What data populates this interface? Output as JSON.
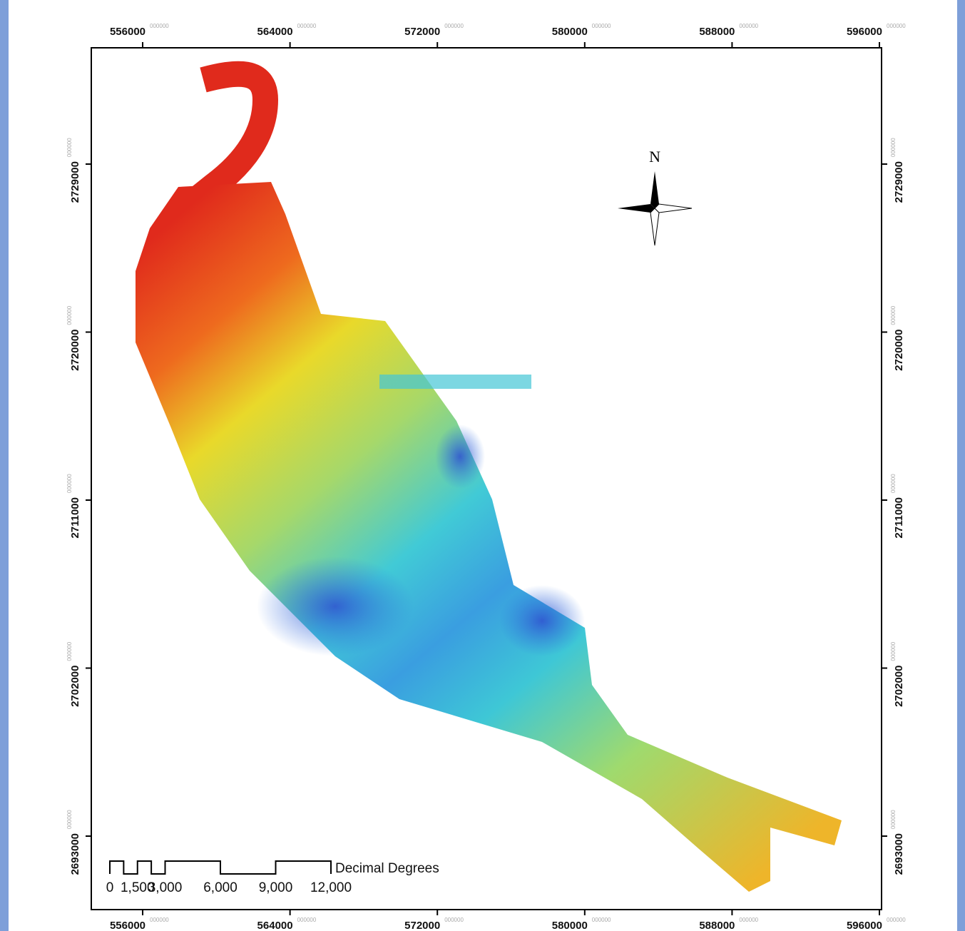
{
  "map": {
    "x_ticks": [
      556000,
      564000,
      572000,
      580000,
      588000,
      596000
    ],
    "y_ticks": [
      2729000,
      2720000,
      2711000,
      2702000,
      2693000
    ],
    "tick_suffix": "000000",
    "xlim": [
      553211,
      596116
    ],
    "ylim": [
      2689064,
      2735229
    ],
    "north_label": "N",
    "scale_bar": {
      "ticks": [
        0,
        {
          "value": 1500,
          "label": "1,500"
        },
        {
          "value": 3000,
          "label": "3,000"
        },
        {
          "value": 6000,
          "label": "6,000"
        },
        {
          "value": 9000,
          "label": "9,000"
        },
        {
          "value": 12000,
          "label": "12,000"
        }
      ],
      "unit": "Decimal Degrees"
    }
  }
}
